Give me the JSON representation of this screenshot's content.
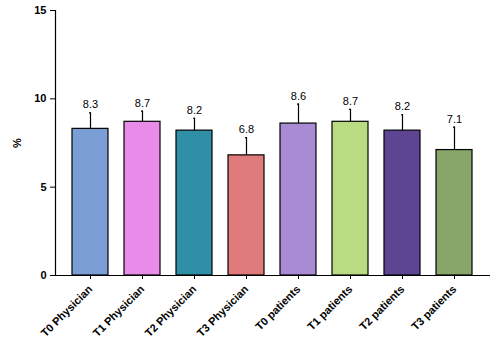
{
  "chart_data": {
    "type": "bar",
    "categories": [
      "T0 Physician",
      "T1 Physician",
      "T2 Physician",
      "T3 Physician",
      "T0 patients",
      "T1 patients",
      "T2 patients",
      "T3 patients"
    ],
    "values": [
      8.3,
      8.7,
      8.2,
      6.8,
      8.6,
      8.7,
      8.2,
      7.1
    ],
    "errors": [
      0.9,
      0.6,
      0.7,
      1.0,
      1.1,
      0.7,
      0.9,
      1.3
    ],
    "colors": [
      "#7b9fd4",
      "#e98be8",
      "#2f8fa6",
      "#e07b7b",
      "#a88bd4",
      "#b9dc82",
      "#5e4594",
      "#88a56a"
    ],
    "y_label": "%",
    "ylim": [
      0,
      15
    ],
    "yticks": [
      0,
      5,
      10,
      15
    ],
    "grid": false,
    "data_labels": true
  }
}
